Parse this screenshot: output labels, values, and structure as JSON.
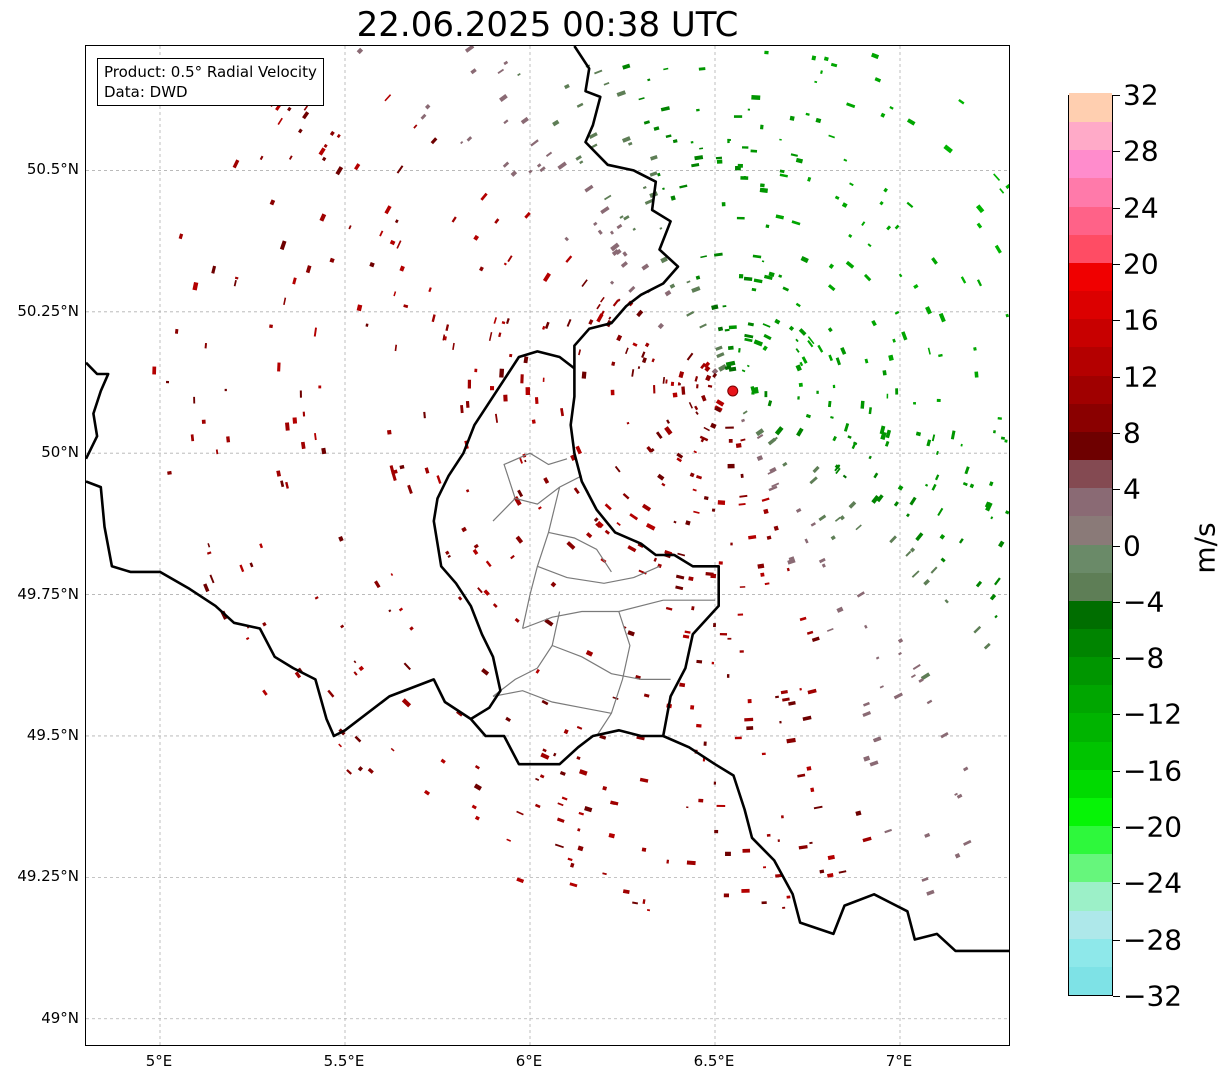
{
  "title": "22.06.2025 00:38 UTC",
  "info_box": {
    "line1": "Product: 0.5° Radial Velocity",
    "line2": "Data: DWD"
  },
  "map": {
    "lon_range": [
      4.8,
      7.3
    ],
    "lat_range": [
      48.95,
      50.72
    ],
    "radar_site": {
      "lon": 6.548,
      "lat": 50.11,
      "color": "#e8141a"
    },
    "grid": true,
    "x_ticks": [
      {
        "lon": 5.0,
        "label": "5°E"
      },
      {
        "lon": 5.5,
        "label": "5.5°E"
      },
      {
        "lon": 6.0,
        "label": "6°E"
      },
      {
        "lon": 6.5,
        "label": "6.5°E"
      },
      {
        "lon": 7.0,
        "label": "7°E"
      }
    ],
    "y_ticks": [
      {
        "lat": 50.5,
        "label": "50.5°N"
      },
      {
        "lat": 50.25,
        "label": "50.25°N"
      },
      {
        "lat": 50.0,
        "label": "50°N"
      },
      {
        "lat": 49.75,
        "label": "49.75°N"
      },
      {
        "lat": 49.5,
        "label": "49.5°N"
      },
      {
        "lat": 49.25,
        "label": "49.25°N"
      },
      {
        "lat": 49.0,
        "label": "49°N"
      }
    ],
    "borders": [
      [
        [
          6.12,
          50.72
        ],
        [
          6.16,
          50.68
        ],
        [
          6.15,
          50.64
        ],
        [
          6.19,
          50.63
        ],
        [
          6.17,
          50.58
        ],
        [
          6.15,
          50.55
        ],
        [
          6.21,
          50.51
        ],
        [
          6.28,
          50.5
        ],
        [
          6.34,
          50.48
        ],
        [
          6.33,
          50.43
        ],
        [
          6.38,
          50.41
        ],
        [
          6.35,
          50.36
        ],
        [
          6.4,
          50.33
        ],
        [
          6.36,
          50.3
        ],
        [
          6.3,
          50.28
        ],
        [
          6.26,
          50.26
        ],
        [
          6.22,
          50.23
        ],
        [
          6.16,
          50.22
        ],
        [
          6.12,
          50.19
        ],
        [
          6.12,
          50.15
        ],
        [
          6.12,
          50.1
        ],
        [
          6.11,
          50.05
        ],
        [
          6.12,
          50.0
        ],
        [
          6.14,
          49.95
        ],
        [
          6.18,
          49.9
        ],
        [
          6.23,
          49.86
        ],
        [
          6.3,
          49.84
        ],
        [
          6.34,
          49.82
        ],
        [
          6.39,
          49.82
        ],
        [
          6.44,
          49.8
        ],
        [
          6.51,
          49.8
        ],
        [
          6.51,
          49.73
        ],
        [
          6.44,
          49.68
        ],
        [
          6.42,
          49.62
        ],
        [
          6.38,
          49.57
        ],
        [
          6.36,
          49.5
        ],
        [
          6.3,
          49.5
        ],
        [
          6.24,
          49.51
        ],
        [
          6.17,
          49.5
        ],
        [
          6.13,
          49.48
        ],
        [
          6.08,
          49.45
        ],
        [
          6.02,
          49.45
        ],
        [
          5.97,
          49.45
        ],
        [
          5.93,
          49.5
        ],
        [
          5.88,
          49.5
        ],
        [
          5.84,
          49.53
        ],
        [
          5.77,
          49.56
        ],
        [
          5.74,
          49.6
        ],
        [
          5.62,
          49.57
        ],
        [
          5.5,
          49.51
        ],
        [
          5.47,
          49.5
        ],
        [
          5.45,
          49.53
        ],
        [
          5.42,
          49.6
        ],
        [
          5.36,
          49.62
        ],
        [
          5.31,
          49.64
        ],
        [
          5.27,
          49.69
        ],
        [
          5.2,
          49.7
        ],
        [
          5.15,
          49.73
        ],
        [
          5.08,
          49.76
        ],
        [
          5.0,
          49.79
        ],
        [
          4.92,
          49.79
        ],
        [
          4.87,
          49.8
        ],
        [
          4.85,
          49.87
        ],
        [
          4.84,
          49.94
        ],
        [
          4.8,
          49.95
        ]
      ],
      [
        [
          6.12,
          50.15
        ],
        [
          6.08,
          50.17
        ],
        [
          6.02,
          50.18
        ],
        [
          5.97,
          50.17
        ],
        [
          5.93,
          50.13
        ],
        [
          5.89,
          50.09
        ],
        [
          5.85,
          50.05
        ],
        [
          5.82,
          50.0
        ],
        [
          5.78,
          49.96
        ],
        [
          5.75,
          49.92
        ],
        [
          5.74,
          49.88
        ],
        [
          5.75,
          49.84
        ],
        [
          5.76,
          49.8
        ],
        [
          5.8,
          49.77
        ],
        [
          5.84,
          49.73
        ],
        [
          5.87,
          49.68
        ],
        [
          5.9,
          49.64
        ],
        [
          5.92,
          49.58
        ],
        [
          5.89,
          49.55
        ],
        [
          5.84,
          49.53
        ]
      ],
      [
        [
          6.36,
          49.5
        ],
        [
          6.43,
          49.48
        ],
        [
          6.5,
          49.45
        ],
        [
          6.55,
          49.43
        ],
        [
          6.58,
          49.37
        ],
        [
          6.6,
          49.32
        ],
        [
          6.66,
          49.28
        ],
        [
          6.71,
          49.22
        ],
        [
          6.73,
          49.17
        ],
        [
          6.82,
          49.15
        ],
        [
          6.85,
          49.2
        ],
        [
          6.93,
          49.22
        ],
        [
          7.02,
          49.19
        ],
        [
          7.04,
          49.14
        ],
        [
          7.1,
          49.15
        ],
        [
          7.15,
          49.12
        ],
        [
          7.3,
          49.12
        ]
      ],
      [
        [
          4.8,
          50.16
        ],
        [
          4.83,
          50.14
        ],
        [
          4.86,
          50.14
        ],
        [
          4.84,
          50.11
        ],
        [
          4.82,
          50.07
        ],
        [
          4.83,
          50.03
        ],
        [
          4.8,
          49.99
        ]
      ]
    ],
    "districts": [
      [
        [
          5.9,
          49.88
        ],
        [
          5.96,
          49.92
        ],
        [
          6.02,
          49.91
        ],
        [
          6.08,
          49.94
        ],
        [
          6.14,
          49.96
        ]
      ],
      [
        [
          5.96,
          49.92
        ],
        [
          5.93,
          49.98
        ],
        [
          6.0,
          50.0
        ],
        [
          6.05,
          49.98
        ],
        [
          6.1,
          49.99
        ]
      ],
      [
        [
          6.08,
          49.94
        ],
        [
          6.05,
          49.86
        ],
        [
          6.02,
          49.8
        ],
        [
          6.0,
          49.75
        ],
        [
          5.98,
          49.69
        ]
      ],
      [
        [
          6.05,
          49.86
        ],
        [
          6.12,
          49.85
        ],
        [
          6.18,
          49.83
        ],
        [
          6.22,
          49.79
        ]
      ],
      [
        [
          6.02,
          49.8
        ],
        [
          6.1,
          49.78
        ],
        [
          6.2,
          49.77
        ],
        [
          6.28,
          49.78
        ],
        [
          6.35,
          49.8
        ]
      ],
      [
        [
          5.98,
          49.69
        ],
        [
          6.06,
          49.71
        ],
        [
          6.14,
          49.72
        ],
        [
          6.24,
          49.72
        ],
        [
          6.36,
          49.74
        ],
        [
          6.5,
          49.74
        ]
      ],
      [
        [
          6.08,
          49.72
        ],
        [
          6.06,
          49.66
        ],
        [
          6.02,
          49.62
        ],
        [
          5.96,
          49.6
        ],
        [
          5.9,
          49.57
        ]
      ],
      [
        [
          6.24,
          49.72
        ],
        [
          6.27,
          49.66
        ],
        [
          6.25,
          49.6
        ],
        [
          6.22,
          49.54
        ],
        [
          6.18,
          49.5
        ]
      ],
      [
        [
          6.06,
          49.66
        ],
        [
          6.14,
          49.64
        ],
        [
          6.22,
          49.61
        ],
        [
          6.3,
          49.6
        ],
        [
          6.38,
          49.6
        ]
      ],
      [
        [
          5.9,
          49.57
        ],
        [
          5.98,
          49.58
        ],
        [
          6.06,
          49.56
        ],
        [
          6.14,
          49.55
        ],
        [
          6.22,
          49.54
        ]
      ]
    ]
  },
  "colorbar": {
    "unit": "m/s",
    "min": -32,
    "max": 32,
    "step": 2,
    "tick_values": [
      -32,
      -28,
      -24,
      -20,
      -16,
      -12,
      -8,
      -4,
      0,
      4,
      8,
      12,
      16,
      20,
      24,
      28,
      32
    ],
    "tick_labels": [
      "−32",
      "−28",
      "−24",
      "−20",
      "−16",
      "−12",
      "−8",
      "−4",
      "0",
      "4",
      "8",
      "12",
      "16",
      "20",
      "24",
      "28",
      "32"
    ],
    "colors": [
      "#7ee2e6",
      "#8ee8ea",
      "#aee8ea",
      "#9cf0c8",
      "#66f67c",
      "#2ef83c",
      "#06f406",
      "#00da00",
      "#00c400",
      "#00b400",
      "#00a600",
      "#009600",
      "#008400",
      "#006e00",
      "#5e7e56",
      "#6a8a68",
      "#8a7a78",
      "#8a6a74",
      "#844a52",
      "#6e0000",
      "#8a0000",
      "#a00000",
      "#b40000",
      "#c80000",
      "#dc0000",
      "#f00000",
      "#ff4c64",
      "#ff6288",
      "#ff7aaa",
      "#ff8ccc",
      "#ffaac8",
      "#ffcfb0"
    ]
  },
  "radar_echoes": {
    "max_range_km": 110,
    "inbound_color_scale": [
      "#006e00",
      "#008400",
      "#009600",
      "#00a600",
      "#00b400"
    ],
    "outbound_color_scale": [
      "#6e0000",
      "#8a0000",
      "#a00000",
      "#b40000"
    ],
    "weak_positive_color": "#8a6a74",
    "weak_negative_color": "#5e7e56"
  }
}
